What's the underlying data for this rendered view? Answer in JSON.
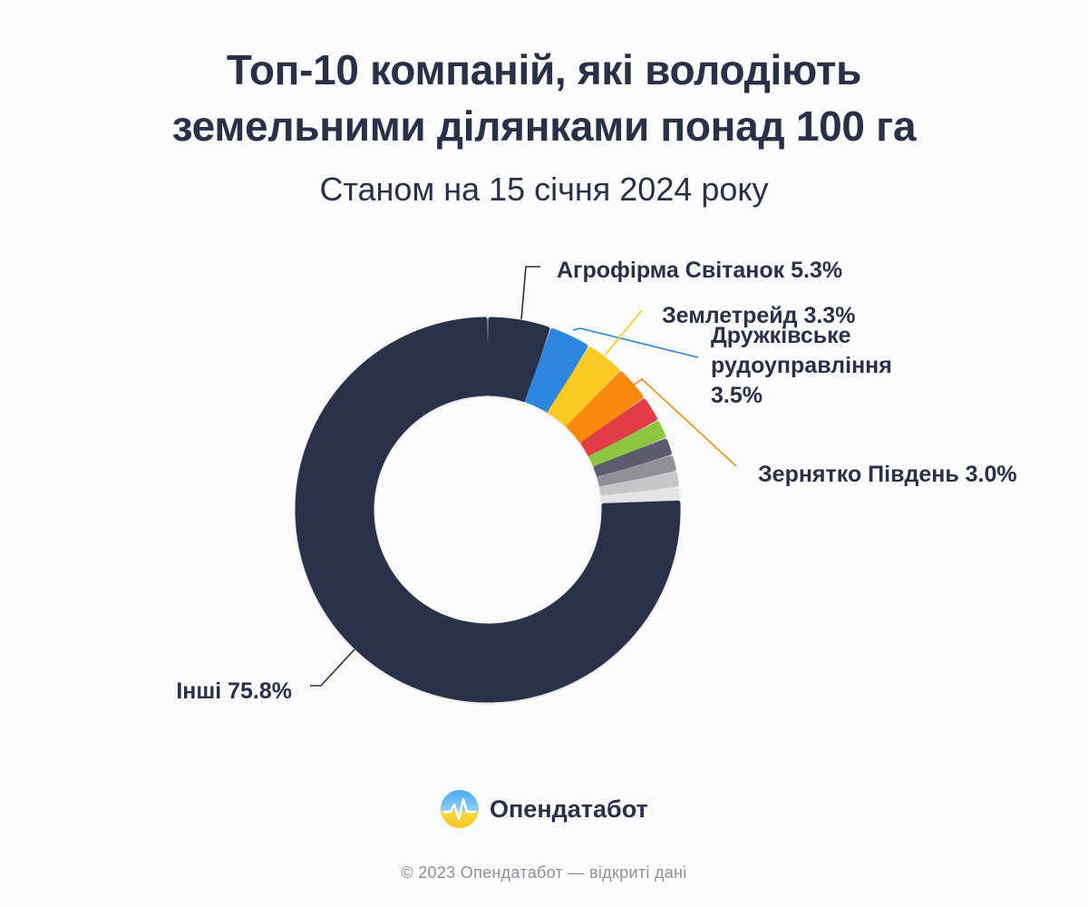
{
  "header": {
    "title_line1": "Топ-10 компаній, які володіють",
    "title_line2": "земельними ділянками понад 100 га",
    "subtitle": "Станом на 15 січня 2024 року"
  },
  "chart_data": {
    "type": "pie",
    "variant": "donut",
    "title": "Топ-10 компаній, які володіють земельними ділянками понад 100 га",
    "subtitle": "Станом на 15 січня 2024 року",
    "unit": "%",
    "slices": [
      {
        "name": "Агрофірма Світанок",
        "value": 5.3,
        "color": "#2b3049",
        "label": "Агрофірма Світанок 5.3%"
      },
      {
        "name": "Дружківське рудоуправління",
        "value": 3.5,
        "color": "#2e86de",
        "label_lines": [
          "Дружківське",
          "рудоуправління",
          "3.5%"
        ]
      },
      {
        "name": "Землетрейд",
        "value": 3.3,
        "color": "#fcc822",
        "label": "Землетрейд 3.3%"
      },
      {
        "name": "Зернятко Південь",
        "value": 3.0,
        "color": "#f78a11",
        "label": "Зернятко Південь 3.0%"
      },
      {
        "value": 2.2,
        "color": "#e23e45"
      },
      {
        "value": 1.6,
        "color": "#8cc63f"
      },
      {
        "value": 1.5,
        "color": "#5b5c6e"
      },
      {
        "value": 1.4,
        "color": "#909196"
      },
      {
        "value": 1.3,
        "color": "#c5c6c8"
      },
      {
        "value": 1.1,
        "color": "#e3e4e5"
      },
      {
        "name": "Інші",
        "value": 75.8,
        "color": "#2b3049",
        "label": "Інші 75.8%"
      }
    ]
  },
  "brand": {
    "name": "Опендатабот",
    "logo_icon": "opendatabot-logo-icon"
  },
  "footer": {
    "text": "© 2023 Опендатабот — відкриті дані"
  }
}
